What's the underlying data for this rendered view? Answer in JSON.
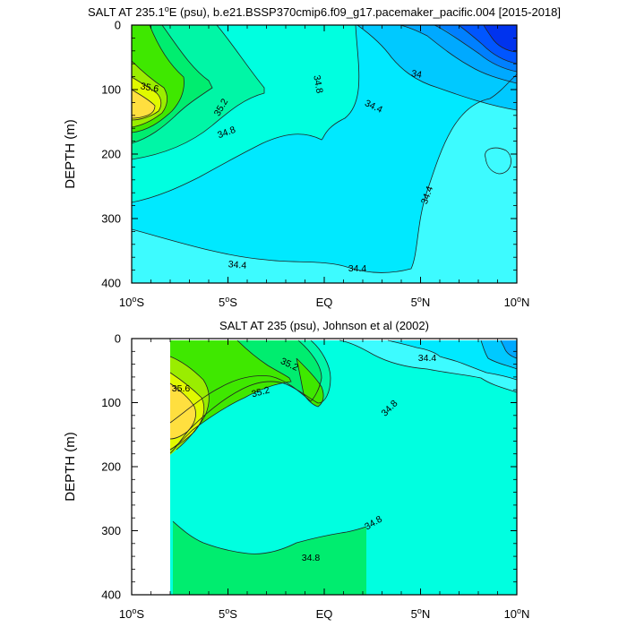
{
  "chart_data": [
    {
      "type": "contour",
      "title": "SALT AT 235.1°E (psu), b.e21.BSSP370cmip6.f09_g17.pacemaker_pacific.004 [2015-2018]",
      "title_parts": [
        "SALT AT 235.1",
        "o",
        "E (psu), b.e21.BSSP370cmip6.f09_g17.pacemaker_pacific.004 [2015-2018]"
      ],
      "ylabel": "DEPTH (m)",
      "xlabel": "",
      "xlim": [
        -10,
        10
      ],
      "ylim": [
        0,
        400
      ],
      "y_inverted": true,
      "x_ticks": [
        {
          "value": -10,
          "num": "10",
          "hem": "S"
        },
        {
          "value": -5,
          "num": "5",
          "hem": "S"
        },
        {
          "value": 0,
          "num": "EQ",
          "hem": ""
        },
        {
          "value": 5,
          "num": "5",
          "hem": "N"
        },
        {
          "value": 10,
          "num": "10",
          "hem": "N"
        }
      ],
      "y_ticks": [
        0,
        100,
        200,
        300,
        400
      ],
      "contour_labels": [
        "35.6",
        "35.2",
        "34.8",
        "34.8",
        "34.4",
        "34",
        "34.4",
        "34.4",
        "34.4"
      ],
      "data_extent": [
        -10,
        10
      ]
    },
    {
      "type": "contour",
      "title": "SALT AT 235 (psu), Johnson et al (2002)",
      "title_parts": [
        "SALT AT 235 (psu), Johnson et al (2002)"
      ],
      "ylabel": "DEPTH (m)",
      "xlabel": "",
      "xlim": [
        -10,
        10
      ],
      "ylim": [
        0,
        400
      ],
      "y_inverted": true,
      "x_ticks": [
        {
          "value": -10,
          "num": "10",
          "hem": "S"
        },
        {
          "value": -5,
          "num": "5",
          "hem": "S"
        },
        {
          "value": 0,
          "num": "EQ",
          "hem": ""
        },
        {
          "value": 5,
          "num": "5",
          "hem": "N"
        },
        {
          "value": 10,
          "num": "10",
          "hem": "N"
        }
      ],
      "y_ticks": [
        0,
        100,
        200,
        300,
        400
      ],
      "contour_labels": [
        "35.6",
        "35.2",
        "35.2",
        "34.4",
        "34.8",
        "34.8",
        "34.8"
      ],
      "data_extent": [
        -8,
        10
      ]
    }
  ],
  "colors": {
    "l1": "#3dfbff",
    "l2": "#00e9ff",
    "l3": "#00c9ff",
    "l4": "#00a9ff",
    "l5": "#0080ff",
    "l6": "#0056ff",
    "l7": "#0033ee",
    "h1": "#00ffe0",
    "h2": "#00f6a6",
    "h3": "#00ed6f",
    "h4": "#3fe800",
    "h5": "#9aed00",
    "h6": "#e0f900",
    "h7": "#ffdf3f"
  }
}
